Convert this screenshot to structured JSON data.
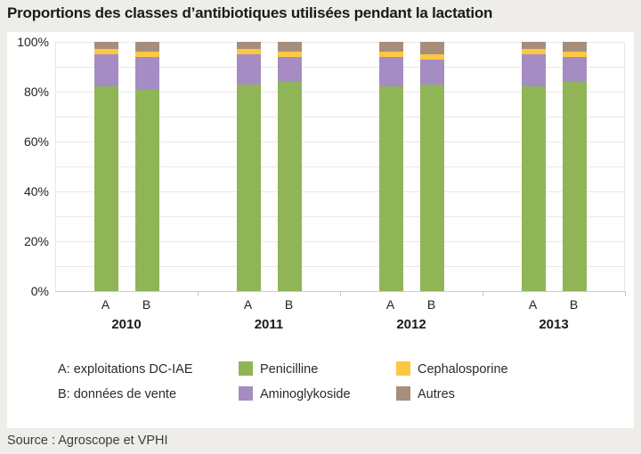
{
  "title": "Proportions des classes d’antibiotiques utilisées pendant la lactation",
  "source": "Source : Agroscope et VPHI",
  "colors": {
    "background": "#EEEDEA",
    "panel": "#FFFFFF",
    "grid": "#E9E8E6",
    "axis": "#CFCDC9",
    "penicilline": "#90B557",
    "aminoglykoside": "#A58CC3",
    "cephalosporine": "#FCC841",
    "autres": "#A68E7D"
  },
  "legend": {
    "notes": [
      {
        "label": "A: exploitations DC-IAE"
      },
      {
        "label": "B: données de vente"
      }
    ],
    "items": [
      {
        "label": "Penicilline",
        "color": "#90B557"
      },
      {
        "label": "Aminoglykoside",
        "color": "#A58CC3"
      },
      {
        "label": "Cephalosporine",
        "color": "#FCC841"
      },
      {
        "label": "Autres",
        "color": "#A68E7D"
      }
    ]
  },
  "chart_data": {
    "type": "bar",
    "stacked": true,
    "unit": "%",
    "title": "Proportions des classes d’antibiotiques utilisées pendant la lactation",
    "xlabel": "",
    "ylabel": "",
    "ylim": [
      0,
      100
    ],
    "grid_step": 10,
    "grid": true,
    "legend_position": "bottom",
    "yticks": [
      0,
      20,
      40,
      60,
      80,
      100
    ],
    "ytick_labels": [
      "0%",
      "20%",
      "40%",
      "60%",
      "80%",
      "100%"
    ],
    "groups": [
      "2010",
      "2011",
      "2012",
      "2013"
    ],
    "bar_labels": [
      "A",
      "B"
    ],
    "series": [
      {
        "name": "Penicilline",
        "color": "#90B557",
        "values": [
          [
            82,
            81
          ],
          [
            83,
            84
          ],
          [
            82,
            83
          ],
          [
            82,
            84
          ]
        ]
      },
      {
        "name": "Aminoglykoside",
        "color": "#A58CC3",
        "values": [
          [
            13,
            13
          ],
          [
            12,
            10
          ],
          [
            12,
            10
          ],
          [
            13,
            10
          ]
        ]
      },
      {
        "name": "Cephalosporine",
        "color": "#FCC841",
        "values": [
          [
            2,
            2
          ],
          [
            2,
            2
          ],
          [
            2,
            2
          ],
          [
            2,
            2
          ]
        ]
      },
      {
        "name": "Autres",
        "color": "#A68E7D",
        "values": [
          [
            3,
            4
          ],
          [
            3,
            4
          ],
          [
            4,
            5
          ],
          [
            3,
            4
          ]
        ]
      }
    ]
  }
}
